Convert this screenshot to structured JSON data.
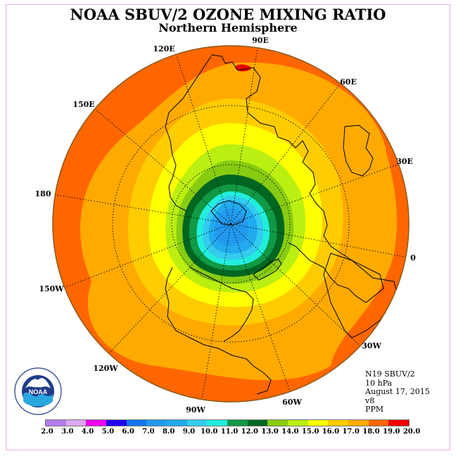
{
  "title": "NOAA SBUV/2 OZONE MIXING RATIO",
  "subtitle": "Northern Hemisphere",
  "longitude_labels": [
    {
      "name": "lon-label-120e",
      "text": "120E"
    },
    {
      "name": "lon-label-90e",
      "text": "90E"
    },
    {
      "name": "lon-label-60e",
      "text": "60E"
    },
    {
      "name": "lon-label-150e",
      "text": "150E"
    },
    {
      "name": "lon-label-30e",
      "text": "30E"
    },
    {
      "name": "lon-label-180",
      "text": "180"
    },
    {
      "name": "lon-label-0",
      "text": "0"
    },
    {
      "name": "lon-label-150w",
      "text": "150W"
    },
    {
      "name": "lon-label-30w",
      "text": "30W"
    },
    {
      "name": "lon-label-120w",
      "text": "120W"
    },
    {
      "name": "lon-label-60w",
      "text": "60W"
    },
    {
      "name": "lon-label-90w",
      "text": "90W"
    }
  ],
  "info": {
    "satellite": "N19 SBUV/2",
    "level": "10 hPa",
    "date": "August 17, 2015",
    "version": "v8",
    "units": "PPM"
  },
  "logo": {
    "text": "NOAA",
    "icon": "noaa-logo-icon"
  },
  "colorbar": {
    "ticks": [
      "2.0",
      "3.0",
      "4.0",
      "5.0",
      "6.0",
      "7.0",
      "8.0",
      "9.0",
      "10.0",
      "11.0",
      "12.0",
      "13.0",
      "14.0",
      "15.0",
      "16.0",
      "17.0",
      "18.0",
      "19.0",
      "20.0"
    ],
    "colors": [
      "#b57bee",
      "#dda8f0",
      "#ee00ee",
      "#2200ee",
      "#1177ee",
      "#2299ee",
      "#22aaee",
      "#33ccee",
      "#22eedd",
      "#119944",
      "#006622",
      "#88cc11",
      "#bbee11",
      "#ffff00",
      "#ffcc00",
      "#ffaa00",
      "#ff6600",
      "#ee0000",
      "#8b5a3c"
    ]
  }
}
